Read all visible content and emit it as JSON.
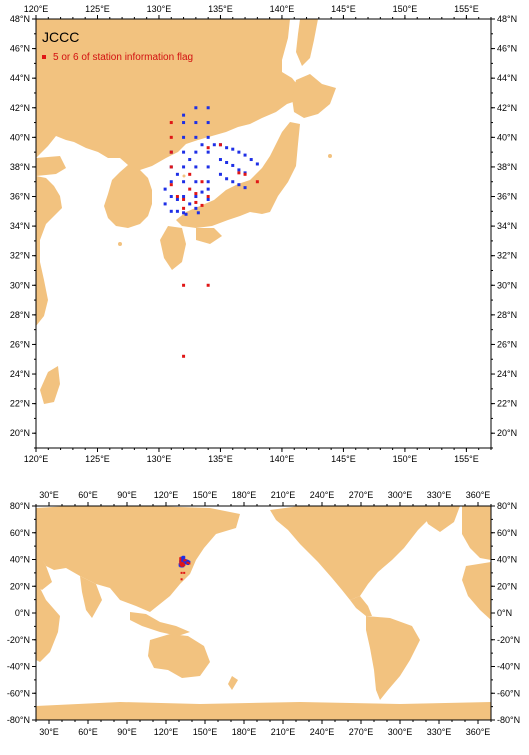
{
  "colors": {
    "land": "#f2c27f",
    "blue": "#1e2fe6",
    "red": "#e01616",
    "frame": "#000000"
  },
  "top_map": {
    "title": "JCCC",
    "legend_label": "5 or 6 of station information flag",
    "x_ticks": [
      "120°E",
      "125°E",
      "130°E",
      "135°E",
      "140°E",
      "145°E",
      "150°E",
      "155°E"
    ],
    "y_ticks": [
      "48°N",
      "46°N",
      "44°N",
      "42°N",
      "40°N",
      "38°N",
      "36°N",
      "34°N",
      "32°N",
      "30°N",
      "28°N",
      "26°N",
      "24°N",
      "22°N",
      "20°N"
    ]
  },
  "bottom_map": {
    "x_ticks": [
      "30°E",
      "60°E",
      "90°E",
      "120°E",
      "150°E",
      "180°E",
      "210°E",
      "240°E",
      "270°E",
      "300°E",
      "330°E",
      "360°E"
    ],
    "y_ticks": [
      "80°N",
      "60°N",
      "40°N",
      "20°N",
      "0°N",
      "-20°N",
      "-40°N",
      "-60°N",
      "-80°N"
    ]
  },
  "chart_data": {
    "type": "scatter",
    "title": "JCCC",
    "extent_top": {
      "lon": [
        120,
        157
      ],
      "lat": [
        19,
        48
      ]
    },
    "extent_bottom": {
      "lon": [
        20,
        370
      ],
      "lat": [
        -80,
        80
      ]
    },
    "series": [
      {
        "name": "",
        "color": "blue",
        "points": [
          [
            131,
            35
          ],
          [
            131,
            36
          ],
          [
            131,
            37
          ],
          [
            131,
            38
          ],
          [
            131,
            39
          ],
          [
            131.5,
            35
          ],
          [
            132,
            34.9
          ],
          [
            132,
            36
          ],
          [
            132,
            37
          ],
          [
            132,
            38
          ],
          [
            132,
            39
          ],
          [
            132,
            40
          ],
          [
            132,
            41
          ],
          [
            132,
            41.5
          ],
          [
            132.5,
            35.5
          ],
          [
            133,
            35.2
          ],
          [
            133,
            36
          ],
          [
            133,
            37
          ],
          [
            133,
            38
          ],
          [
            133,
            39
          ],
          [
            133,
            40
          ],
          [
            133,
            41
          ],
          [
            133,
            42
          ],
          [
            133.5,
            36.3
          ],
          [
            134,
            35.8
          ],
          [
            134,
            36.5
          ],
          [
            134,
            37
          ],
          [
            134,
            38
          ],
          [
            134,
            39
          ],
          [
            134,
            40
          ],
          [
            134,
            41
          ],
          [
            134,
            42
          ],
          [
            134.5,
            39.5
          ],
          [
            135,
            39.5
          ],
          [
            135.5,
            39.3
          ],
          [
            136,
            39.2
          ],
          [
            136.5,
            39
          ],
          [
            137,
            38.8
          ],
          [
            137.5,
            38.5
          ],
          [
            138,
            38.2
          ],
          [
            135,
            37.5
          ],
          [
            135.5,
            37.2
          ],
          [
            136,
            37.0
          ],
          [
            136.5,
            36.8
          ],
          [
            137,
            36.6
          ],
          [
            135,
            38.5
          ],
          [
            135.5,
            38.3
          ],
          [
            136,
            38.1
          ],
          [
            136.5,
            37.8
          ],
          [
            137,
            37.6
          ],
          [
            130.5,
            35.5
          ],
          [
            130.5,
            36.5
          ],
          [
            131.5,
            37.5
          ],
          [
            132.5,
            38.5
          ],
          [
            133.5,
            39.5
          ],
          [
            131.5,
            35.8
          ],
          [
            132.2,
            34.8
          ],
          [
            133.2,
            34.9
          ]
        ]
      },
      {
        "name": "5 or 6 of station information flag",
        "color": "red",
        "points": [
          [
            131,
            38
          ],
          [
            131,
            39
          ],
          [
            131,
            40
          ],
          [
            131,
            41
          ],
          [
            131.5,
            36
          ],
          [
            132,
            35.2
          ],
          [
            132,
            35.8
          ],
          [
            132.5,
            36.5
          ],
          [
            133,
            35.6
          ],
          [
            133,
            36.2
          ],
          [
            133.5,
            35.4
          ],
          [
            134,
            36
          ],
          [
            134,
            39.3
          ],
          [
            135,
            39.5
          ],
          [
            136.5,
            37.6
          ],
          [
            137,
            37.5
          ],
          [
            138,
            37
          ],
          [
            132,
            30
          ],
          [
            134,
            30
          ],
          [
            132,
            25.2
          ],
          [
            131,
            36.8
          ],
          [
            132.5,
            37.5
          ],
          [
            133.5,
            37
          ]
        ]
      }
    ]
  }
}
